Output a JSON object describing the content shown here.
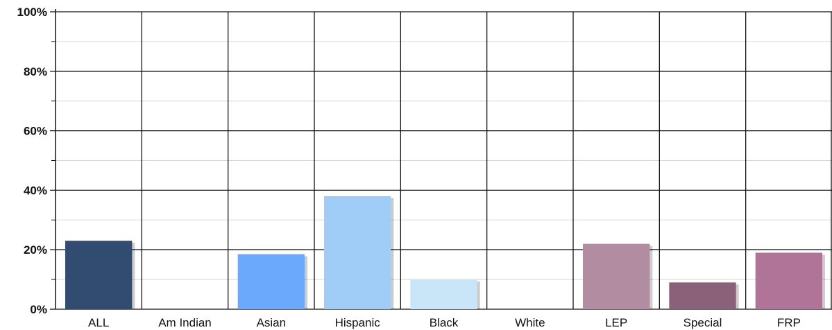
{
  "chart_data": {
    "type": "bar",
    "categories": [
      "ALL",
      "Am Indian",
      "Asian",
      "Hispanic",
      "Black",
      "White",
      "LEP",
      "Special",
      "FRP"
    ],
    "values": [
      23,
      null,
      18.5,
      38,
      10,
      null,
      22,
      9,
      19
    ],
    "colors": [
      "#314c70",
      "#ffffff",
      "#6aa9fb",
      "#9fcdf7",
      "#c9e6f8",
      "#ffffff",
      "#b28ca0",
      "#8b6179",
      "#b07499"
    ],
    "title": "",
    "xlabel": "",
    "ylabel": "",
    "ylim": [
      0,
      100
    ],
    "y_major_ticks": [
      0,
      20,
      40,
      60,
      80,
      100
    ],
    "y_minor_ticks": [
      10,
      30,
      50,
      70,
      90
    ],
    "y_tick_labels": [
      "0%",
      "20%",
      "40%",
      "60%",
      "80%",
      "100%"
    ],
    "grid": true,
    "legend": "none"
  }
}
